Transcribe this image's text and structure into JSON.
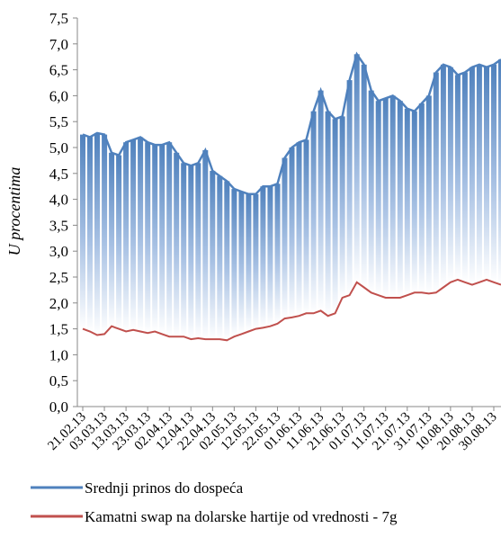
{
  "chart_data": {
    "type": "line",
    "title": "",
    "xlabel": "",
    "ylabel": "U procentima",
    "ylim": [
      0,
      7.5
    ],
    "yticks": [
      "0,0",
      "0,5",
      "1,0",
      "1,5",
      "2,0",
      "2,5",
      "3,0",
      "3,5",
      "4,0",
      "4,5",
      "5,0",
      "5,5",
      "6,0",
      "6,5",
      "7,0",
      "7,5"
    ],
    "xticks": [
      "21.02.13",
      "03.03.13",
      "13.03.13",
      "23.03.13",
      "02.04.13",
      "12.04.13",
      "22.04.13",
      "02.05.13",
      "12.05.13",
      "22.05.13",
      "01.06.13",
      "11.06.13",
      "21.06.13",
      "01.07.13",
      "11.07.13",
      "21.07.13",
      "31.07.13",
      "10.08.13",
      "20.08.13",
      "30.08.13"
    ],
    "x": [
      "21.02.13",
      "24.02.13",
      "27.02.13",
      "03.03.13",
      "06.03.13",
      "09.03.13",
      "13.03.13",
      "16.03.13",
      "19.03.13",
      "23.03.13",
      "26.03.13",
      "29.03.13",
      "02.04.13",
      "05.04.13",
      "08.04.13",
      "12.04.13",
      "15.04.13",
      "18.04.13",
      "22.04.13",
      "25.04.13",
      "28.04.13",
      "02.05.13",
      "05.05.13",
      "08.05.13",
      "12.05.13",
      "15.05.13",
      "18.05.13",
      "22.05.13",
      "25.05.13",
      "28.05.13",
      "01.06.13",
      "04.06.13",
      "07.06.13",
      "11.06.13",
      "14.06.13",
      "17.06.13",
      "21.06.13",
      "24.06.13",
      "27.06.13",
      "01.07.13",
      "04.07.13",
      "07.07.13",
      "11.07.13",
      "14.07.13",
      "17.07.13",
      "21.07.13",
      "24.07.13",
      "27.07.13",
      "31.07.13",
      "03.08.13",
      "06.08.13",
      "10.08.13",
      "13.08.13",
      "16.08.13",
      "20.08.13",
      "23.08.13",
      "26.08.13",
      "30.08.13",
      "02.09.13"
    ],
    "series": [
      {
        "name": "Srednji prinos do dospeća",
        "color": "#4f81bd",
        "fill": "gradient",
        "values": [
          5.25,
          5.2,
          5.28,
          5.25,
          4.9,
          4.85,
          5.1,
          5.15,
          5.2,
          5.1,
          5.05,
          5.05,
          5.1,
          4.9,
          4.7,
          4.65,
          4.7,
          4.95,
          4.55,
          4.45,
          4.35,
          4.2,
          4.15,
          4.1,
          4.1,
          4.25,
          4.25,
          4.3,
          4.8,
          5.0,
          5.1,
          5.15,
          5.7,
          6.1,
          5.7,
          5.55,
          5.6,
          6.3,
          6.8,
          6.6,
          6.1,
          5.9,
          5.95,
          6.0,
          5.9,
          5.75,
          5.7,
          5.85,
          6.0,
          6.45,
          6.6,
          6.55,
          6.4,
          6.45,
          6.55,
          6.6,
          6.55,
          6.6,
          6.7
        ]
      },
      {
        "name": "Kamatni swap na dolarske hartije od vrednosti - 7g",
        "color": "#c0504d",
        "values": [
          1.5,
          1.45,
          1.38,
          1.4,
          1.55,
          1.5,
          1.45,
          1.48,
          1.45,
          1.42,
          1.45,
          1.4,
          1.35,
          1.35,
          1.35,
          1.3,
          1.32,
          1.3,
          1.3,
          1.3,
          1.28,
          1.35,
          1.4,
          1.45,
          1.5,
          1.52,
          1.55,
          1.6,
          1.7,
          1.72,
          1.75,
          1.8,
          1.8,
          1.85,
          1.75,
          1.8,
          2.1,
          2.15,
          2.4,
          2.3,
          2.2,
          2.15,
          2.1,
          2.1,
          2.1,
          2.15,
          2.2,
          2.2,
          2.18,
          2.2,
          2.3,
          2.4,
          2.45,
          2.4,
          2.35,
          2.4,
          2.45,
          2.4,
          2.35
        ]
      }
    ],
    "legend_position": "bottom",
    "grid": false
  }
}
